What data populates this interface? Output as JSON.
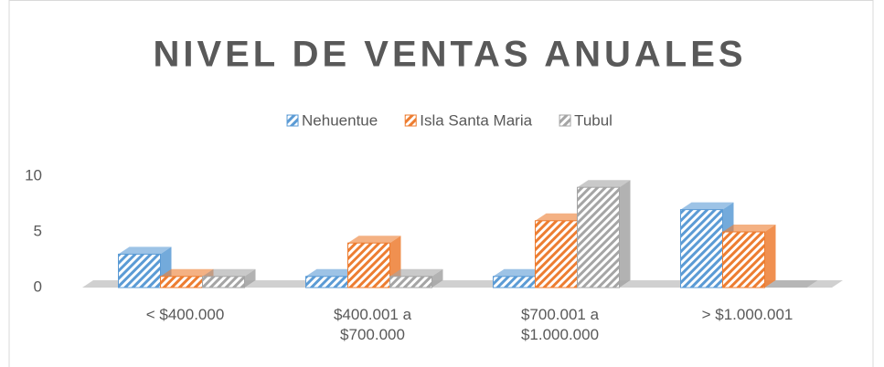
{
  "chart_data": {
    "type": "bar3d",
    "title": "NIVEL DE VENTAS ANUALES",
    "categories": [
      "< $400.000",
      "$400.001 a $700.000",
      "$700.001 a $1.000.000",
      "> $1.000.001"
    ],
    "series": [
      {
        "name": "Nehuentue",
        "color": "#5b9bd5",
        "values": [
          3,
          1,
          1,
          7
        ]
      },
      {
        "name": "Isla Santa Maria",
        "color": "#ed7d31",
        "values": [
          1,
          4,
          6,
          5
        ]
      },
      {
        "name": "Tubul",
        "color": "#a5a5a5",
        "values": [
          1,
          1,
          9,
          0
        ]
      }
    ],
    "ylim": [
      0,
      10
    ],
    "yticks": [
      0,
      5,
      10
    ],
    "legend": "top"
  }
}
